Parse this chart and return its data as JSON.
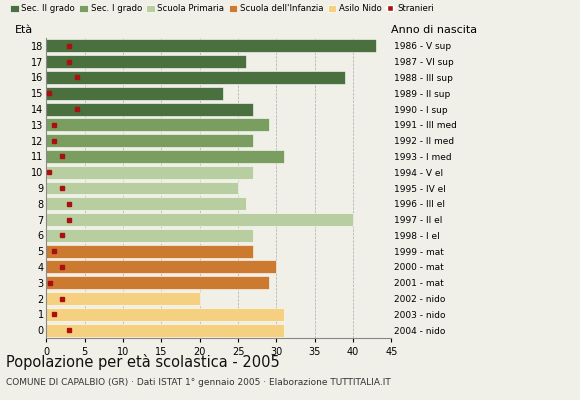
{
  "ages": [
    0,
    1,
    2,
    3,
    4,
    5,
    6,
    7,
    8,
    9,
    10,
    11,
    12,
    13,
    14,
    15,
    16,
    17,
    18
  ],
  "years": [
    "2004 - nido",
    "2003 - nido",
    "2002 - nido",
    "2001 - mat",
    "2000 - mat",
    "1999 - mat",
    "1998 - I el",
    "1997 - II el",
    "1996 - III el",
    "1995 - IV el",
    "1994 - V el",
    "1993 - I med",
    "1992 - II med",
    "1991 - III med",
    "1990 - I sup",
    "1989 - II sup",
    "1988 - III sup",
    "1987 - VI sup",
    "1986 - V sup"
  ],
  "bar_values": [
    31,
    31,
    20,
    29,
    30,
    27,
    27,
    40,
    26,
    25,
    27,
    31,
    27,
    29,
    27,
    23,
    39,
    26,
    43
  ],
  "stranieri": [
    3,
    1,
    2,
    0.5,
    2,
    1,
    2,
    3,
    3,
    2,
    0.3,
    2,
    1,
    1,
    4,
    0.3,
    4,
    3,
    3
  ],
  "category_colors": [
    "#f5d080",
    "#f5d080",
    "#f5d080",
    "#cc7a30",
    "#cc7a30",
    "#cc7a30",
    "#b8cea0",
    "#b8cea0",
    "#b8cea0",
    "#b8cea0",
    "#b8cea0",
    "#7a9e60",
    "#7a9e60",
    "#7a9e60",
    "#4a7040",
    "#4a7040",
    "#4a7040",
    "#4a7040",
    "#4a7040"
  ],
  "stranieri_color": "#aa1010",
  "legend_labels": [
    "Sec. II grado",
    "Sec. I grado",
    "Scuola Primaria",
    "Scuola dell'Infanzia",
    "Asilo Nido",
    "Stranieri"
  ],
  "legend_colors": [
    "#4a7040",
    "#7a9e60",
    "#b8cea0",
    "#cc7a30",
    "#f5d080",
    "#aa1010"
  ],
  "title": "Popolazione per età scolastica - 2005",
  "subtitle": "COMUNE DI CAPALBIO (GR) · Dati ISTAT 1° gennaio 2005 · Elaborazione TUTTITALIA.IT",
  "ylabel_eta": "Età",
  "ylabel_anno": "Anno di nascita",
  "xlim": [
    0,
    45
  ],
  "xticks": [
    0,
    5,
    10,
    15,
    20,
    25,
    30,
    35,
    40,
    45
  ],
  "bg_color": "#f0f0e8"
}
